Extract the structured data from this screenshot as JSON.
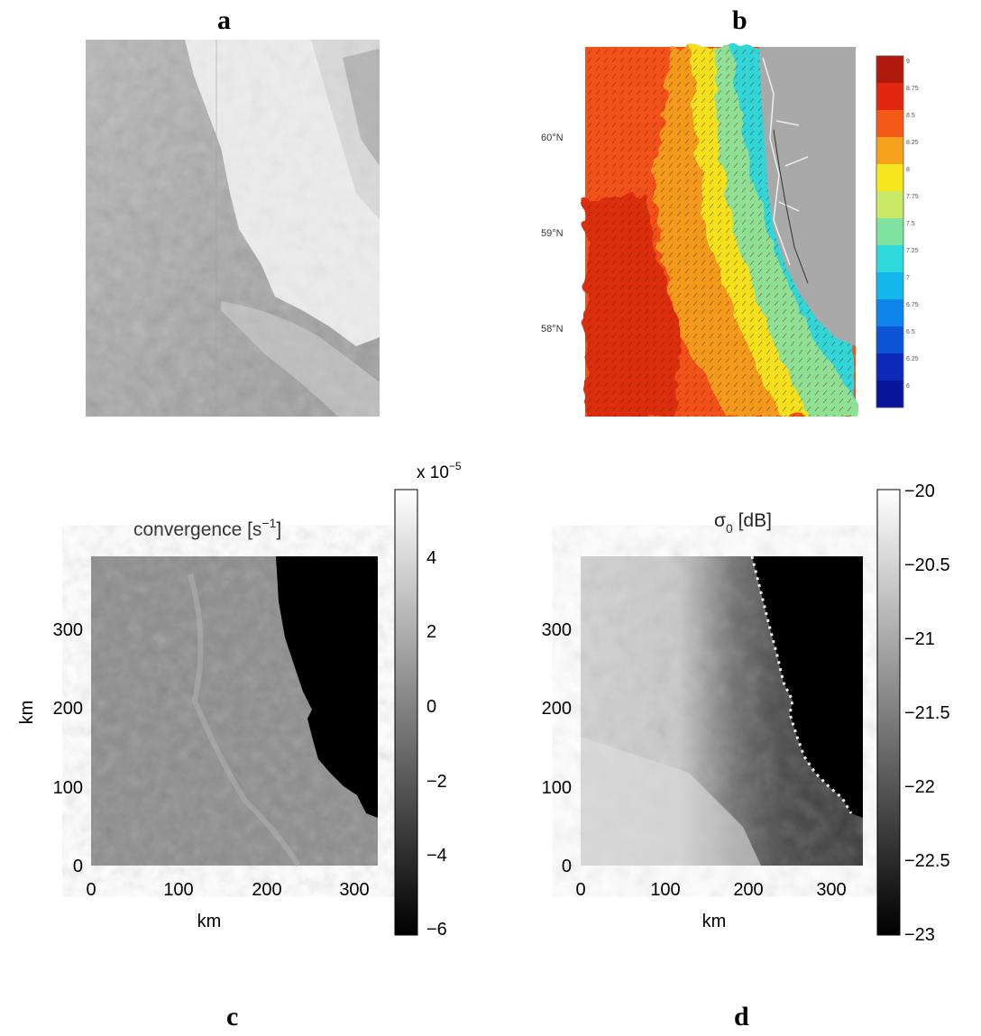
{
  "panels": {
    "a": {
      "letter": "a"
    },
    "b": {
      "letter": "b",
      "lat_labels": [
        "60°N",
        "59°N",
        "58°N"
      ],
      "colorbar_ticks": [
        "9",
        "8.75",
        "8.5",
        "8.25",
        "8",
        "7.75",
        "7.5",
        "7.25",
        "7",
        "6.75",
        "6.5",
        "6.25",
        "6"
      ],
      "colorbar_colors": [
        "#b01a0c",
        "#e2260f",
        "#f45a17",
        "#f7a21c",
        "#f6e61e",
        "#c9e866",
        "#7fe2a0",
        "#2ed9dc",
        "#12b7ee",
        "#0e85ea",
        "#0d54d6",
        "#0b2ab8",
        "#0a149a"
      ],
      "ocean_color": "#f2521a",
      "land_color": "#a9a9a9"
    },
    "c": {
      "letter": "c",
      "title_main": "convergence [s",
      "title_sup": "−1",
      "title_end": "]",
      "xlabel": "km",
      "ylabel": "km",
      "xticks": [
        "0",
        "100",
        "200",
        "300"
      ],
      "yticks": [
        "0",
        "100",
        "200",
        "300"
      ],
      "colorbar_multiplier": "x 10",
      "colorbar_exponent": "−5",
      "colorbar_ticks": [
        "4",
        "2",
        "0",
        "−2",
        "−4",
        "−6"
      ]
    },
    "d": {
      "letter": "d",
      "title_main": "σ",
      "title_sub": "0",
      "title_end": " [dB]",
      "xlabel": "km",
      "xticks": [
        "0",
        "100",
        "200",
        "300"
      ],
      "yticks": [
        "0",
        "100",
        "200",
        "300"
      ],
      "colorbar_ticks": [
        "−20",
        "−20.5",
        "−21",
        "−21.5",
        "−22",
        "−22.5",
        "−23"
      ]
    }
  }
}
